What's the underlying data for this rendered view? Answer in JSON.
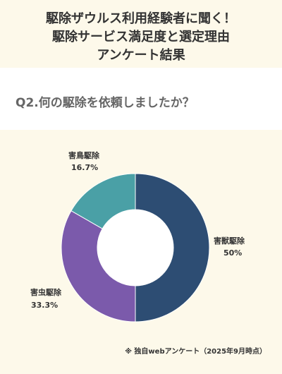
{
  "title_lines": [
    "駆除ザウルス利用経験者に聞く！",
    "駆除サービス満足度と選定理由",
    "アンケート結果"
  ],
  "question": "Q2.何の駆除を依頼しましたか？",
  "footnote": "※ 独自webアンケート（2025年9月時点）",
  "chart_data": {
    "type": "pie",
    "donut": true,
    "slices": [
      {
        "label": "害獣駆除",
        "value": 50,
        "display": "50%",
        "color": "#2d4d73"
      },
      {
        "label": "害虫駆除",
        "value": 33.3,
        "display": "33.3%",
        "color": "#7b5aab"
      },
      {
        "label": "害鳥駆除",
        "value": 16.7,
        "display": "16.7%",
        "color": "#4aa0a6"
      }
    ]
  }
}
